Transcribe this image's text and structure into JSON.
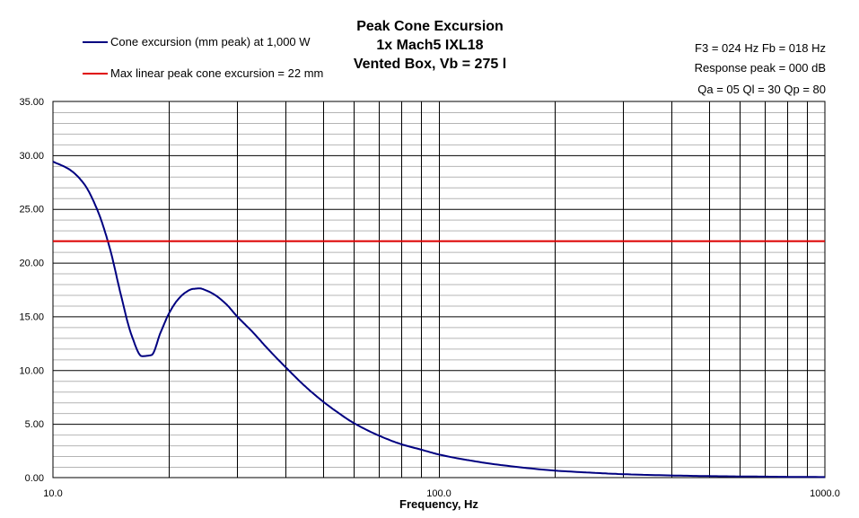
{
  "chart_data": {
    "type": "line",
    "title_lines": [
      "Peak Cone Excursion",
      "1x Mach5 IXL18",
      "Vented Box, Vb = 275 l"
    ],
    "xlabel": "Frequency, Hz",
    "ylabel": "",
    "x_scale": "log",
    "xlim": [
      10,
      1000
    ],
    "ylim": [
      0,
      35
    ],
    "x_tick_labels": [
      "10.0",
      "100.0",
      "1000.0"
    ],
    "x_ticks": [
      10,
      100,
      1000
    ],
    "y_tick_labels": [
      "0.00",
      "5.00",
      "10.00",
      "15.00",
      "20.00",
      "25.00",
      "30.00",
      "35.00"
    ],
    "y_ticks": [
      0,
      5,
      10,
      15,
      20,
      25,
      30,
      35
    ],
    "grid": true,
    "legend_position": "top-left",
    "info_lines": [
      "F3 = 024 Hz  Fb = 018 Hz",
      "Response peak = 000 dB",
      "Qa = 05  Ql = 30  Qp = 80"
    ],
    "series": [
      {
        "name": "Cone excursion (mm peak) at 1,000 W",
        "color": "#000080",
        "x": [
          10,
          11,
          12,
          13,
          14,
          15,
          16,
          17,
          18,
          19,
          20,
          21,
          22,
          23,
          24,
          25,
          26,
          28,
          30,
          33,
          36,
          40,
          45,
          50,
          55,
          60,
          70,
          80,
          90,
          100,
          120,
          150,
          200,
          250,
          300,
          400,
          500,
          600,
          700,
          800,
          1000
        ],
        "y": [
          29.4,
          28.7,
          27.4,
          25.0,
          21.5,
          17.0,
          13.2,
          11.3,
          11.4,
          13.5,
          15.3,
          16.5,
          17.2,
          17.55,
          17.6,
          17.4,
          17.1,
          16.2,
          15.0,
          13.5,
          12.0,
          10.3,
          8.5,
          7.1,
          6.0,
          5.1,
          3.9,
          3.1,
          2.6,
          2.15,
          1.6,
          1.1,
          0.65,
          0.45,
          0.32,
          0.2,
          0.14,
          0.11,
          0.09,
          0.07,
          0.05
        ]
      },
      {
        "name": "Max linear peak cone excursion = 22 mm",
        "color": "#e00000",
        "x": [
          10,
          1000
        ],
        "y": [
          22,
          22
        ]
      }
    ]
  }
}
